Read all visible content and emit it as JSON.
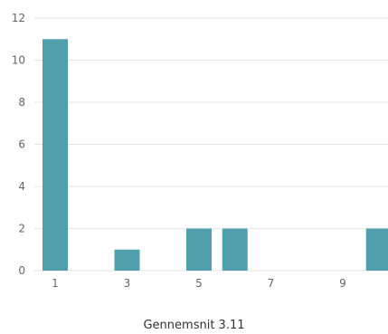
{
  "chart_data": {
    "type": "bar",
    "categories": [
      "1",
      "2",
      "3",
      "4",
      "5",
      "6",
      "7",
      "8",
      "9",
      "10"
    ],
    "values": [
      11,
      0,
      1,
      0,
      2,
      2,
      0,
      0,
      0,
      2
    ],
    "x_tick_labels": [
      "1",
      "3",
      "5",
      "7",
      "9"
    ],
    "y_ticks": [
      "0",
      "2",
      "4",
      "6",
      "8",
      "10",
      "12"
    ],
    "ylim": [
      0,
      12
    ],
    "grid": true,
    "bar_color": "#519fac",
    "caption": "Gennemsnit 3.11"
  }
}
